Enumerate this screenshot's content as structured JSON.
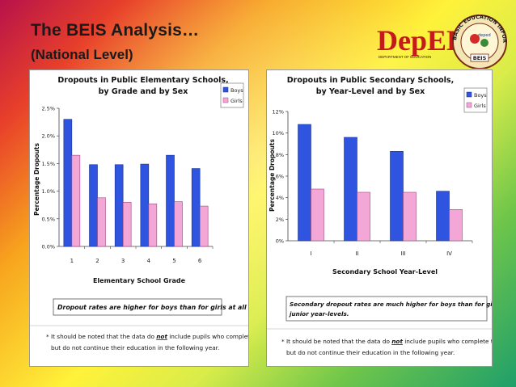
{
  "slide": {
    "title": "The BEIS Analysis…",
    "subtitle": "(National Level)"
  },
  "logos": {
    "deped_wordmark": "DepED",
    "deped_subtitle": "DEPARTMENT OF EDUCATION",
    "beis_ring_text": "BASIC EDUCATION INFORMATION SYSTEM",
    "beis_label": "BEIS",
    "beis_inner_text": "deped",
    "brand_red": "#c41a1a"
  },
  "colors": {
    "boys": "#2f55e0",
    "girls": "#f2a7d6",
    "boys_border": "#1a2f8a",
    "girls_border": "#9a4a7a"
  },
  "chart_data": [
    {
      "type": "bar",
      "title_line1": "Dropouts in Public Elementary Schools,",
      "title_line2": "by Grade and by Sex",
      "xlabel": "Elementary School Grade",
      "ylabel": "Percentage Dropouts",
      "categories": [
        "1",
        "2",
        "3",
        "4",
        "5",
        "6"
      ],
      "series": [
        {
          "name": "Boys",
          "values": [
            2.3,
            1.48,
            1.48,
            1.49,
            1.65,
            1.41
          ]
        },
        {
          "name": "Girls",
          "values": [
            1.65,
            0.88,
            0.8,
            0.77,
            0.81,
            0.73
          ]
        }
      ],
      "ylim": [
        0,
        2.5
      ],
      "yticks": [
        0,
        0.5,
        1.0,
        1.5,
        2.0,
        2.5
      ],
      "ytick_labels": [
        "0.0%",
        "0.5%",
        "1.0%",
        "1.5%",
        "2.0%",
        "2.5%"
      ],
      "legend": [
        "Boys",
        "Girls"
      ],
      "legend_position": "top-right",
      "grid": false,
      "note": "Dropout rates are higher for boys than for girls at all grade levels.",
      "footnote_pre": "* It should be noted that the data do ",
      "footnote_em": "not",
      "footnote_post": " include pupils who complete the grade,",
      "footnote_line2": "but do not continue their education in the following year."
    },
    {
      "type": "bar",
      "title_line1": "Dropouts in Public Secondary Schools,",
      "title_line2": "by Year-Level and by Sex",
      "xlabel": "Secondary School Year-Level",
      "ylabel": "Percentage Dropouts",
      "categories": [
        "I",
        "II",
        "III",
        "IV"
      ],
      "series": [
        {
          "name": "Boys",
          "values": [
            10.8,
            9.6,
            8.3,
            4.6
          ]
        },
        {
          "name": "Girls",
          "values": [
            4.8,
            4.5,
            4.5,
            2.9
          ]
        }
      ],
      "ylim": [
        0,
        12
      ],
      "yticks": [
        0,
        2,
        4,
        6,
        8,
        10,
        12
      ],
      "ytick_labels": [
        "0%",
        "2%",
        "4%",
        "6%",
        "8%",
        "10%",
        "12%"
      ],
      "legend": [
        "Boys",
        "Girls"
      ],
      "legend_position": "top-right",
      "grid": false,
      "note_line1": "Secondary dropout rates are much higher for boys than for girls, especially in the",
      "note_line2": "junior year-levels.",
      "footnote_pre": "* It should be noted that the data do ",
      "footnote_em": "not",
      "footnote_post": " include pupils who complete the grade,",
      "footnote_line2": "but do not continue their education in the following year."
    }
  ]
}
